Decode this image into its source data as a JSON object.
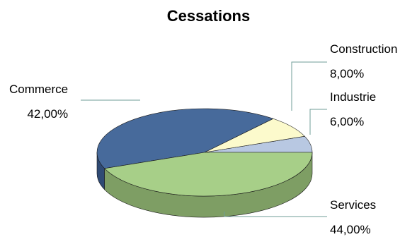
{
  "chart_data": {
    "type": "pie",
    "title": "Cessations",
    "slices": [
      {
        "label": "Commerce",
        "value": 42.0,
        "display": "42,00%",
        "color": "#476A9B",
        "side": "#2F4A74"
      },
      {
        "label": "Construction",
        "value": 8.0,
        "display": "8,00%",
        "color": "#FCFACC",
        "side": "#CFCCA0"
      },
      {
        "label": "Industrie",
        "value": 6.0,
        "display": "6,00%",
        "color": "#B8C8E2",
        "side": "#8E9DB8"
      },
      {
        "label": "Services",
        "value": 44.0,
        "display": "44,00%",
        "color": "#A7CF88",
        "side": "#7E9E64"
      }
    ],
    "leader_color": "#6F9C97"
  }
}
